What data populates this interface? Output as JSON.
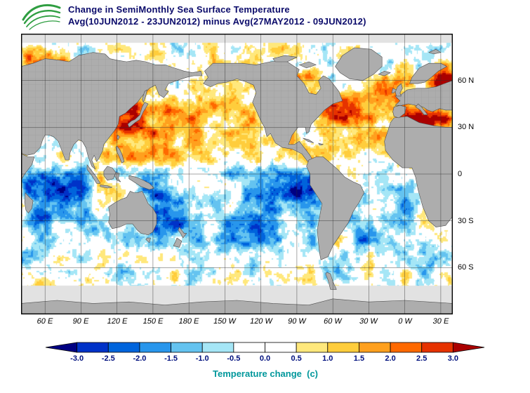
{
  "header": {
    "title_line1": "Change in SemiMonthly Sea Surface Temperature",
    "title_line2": "Avg(10JUN2012 - 23JUN2012) minus Avg(27MAY2012 - 09JUN2012)"
  },
  "map": {
    "lat_labels": [
      "60 N",
      "30 N",
      "0",
      "30 S",
      "60 S"
    ],
    "lon_labels": [
      "60 E",
      "90 E",
      "120 E",
      "150 E",
      "180 E",
      "150 W",
      "120 W",
      "90 W",
      "60 W",
      "30 W",
      "0 W",
      "30 E"
    ],
    "land_color": "#adadad",
    "ice_color": "#e2e2e2",
    "grid_color": "#303030",
    "border_color": "#000000"
  },
  "colorbar": {
    "label": "Temperature change  (c)",
    "tick_labels": [
      "-3.0",
      "-2.5",
      "-2.0",
      "-1.5",
      "-1.0",
      "-0.5",
      "0.0",
      "0.5",
      "1.0",
      "1.5",
      "2.0",
      "2.5",
      "3.0"
    ],
    "colors": [
      "#000082",
      "#0032c8",
      "#0064dc",
      "#2896ec",
      "#64c3f0",
      "#a5e6f6",
      "#ffffff",
      "#ffffff",
      "#ffe87c",
      "#ffcd3c",
      "#ffa01e",
      "#ff6900",
      "#e63200",
      "#aa0000"
    ]
  },
  "chart_data": {
    "type": "heatmap",
    "title": "Change in SemiMonthly Sea Surface Temperature",
    "subtitle": "Avg(10JUN2012 - 23JUN2012) minus Avg(27MAY2012 - 09JUN2012)",
    "units": "C",
    "value_range": [
      -3.5,
      3.5
    ],
    "contour_interval": 0.5,
    "projection": "cylindrical-equidistant",
    "lon_range_deg_e": [
      40,
      400
    ],
    "lat_range_deg": [
      -90,
      90
    ],
    "lat_gridlines_deg": [
      60,
      30,
      0,
      -30,
      -60
    ],
    "lon_gridlines_deg_e": [
      60,
      90,
      120,
      150,
      180,
      210,
      240,
      270,
      300,
      330,
      360,
      390
    ],
    "anomaly_regions": [
      {
        "name": "nh-broad-slight-warming",
        "lon": [
          30,
          410
        ],
        "lat": [
          4,
          72
        ],
        "delta_c": 0.25
      },
      {
        "name": "barents-kara-strong-warming",
        "lon": [
          44,
          82
        ],
        "lat": [
          66,
          80
        ],
        "delta_c": 2.2
      },
      {
        "name": "nw-pacific-strong-warming",
        "lon": [
          118,
          168
        ],
        "lat": [
          24,
          46
        ],
        "delta_c": 1.9
      },
      {
        "name": "central-north-pacific-warming",
        "lon": [
          168,
          238
        ],
        "lat": [
          26,
          48
        ],
        "delta_c": 0.9
      },
      {
        "name": "subtropical-north-pacific-warming",
        "lon": [
          115,
          250
        ],
        "lat": [
          6,
          26
        ],
        "delta_c": 0.55
      },
      {
        "name": "caribbean-east-pacific-warming",
        "lon": [
          250,
          300
        ],
        "lat": [
          6,
          30
        ],
        "delta_c": 0.5
      },
      {
        "name": "gulf-stream-nw-atlantic-warming",
        "lon": [
          288,
          330
        ],
        "lat": [
          33,
          53
        ],
        "delta_c": 1.6
      },
      {
        "name": "northeast-atlantic-warming",
        "lon": [
          330,
          400
        ],
        "lat": [
          30,
          63
        ],
        "delta_c": 1.1
      },
      {
        "name": "mediterranean-strong-warming",
        "lon": [
          355,
          398
        ],
        "lat": [
          30,
          40
        ],
        "delta_c": 2.1
      },
      {
        "name": "tropical-north-atlantic-warming",
        "lon": [
          308,
          385
        ],
        "lat": [
          8,
          28
        ],
        "delta_c": 0.8
      },
      {
        "name": "hudson-bay-labrador-warming",
        "lon": [
          252,
          292
        ],
        "lat": [
          52,
          67
        ],
        "delta_c": 1.5
      },
      {
        "name": "norwegian-sea-warming",
        "lon": [
          382,
          402
        ],
        "lat": [
          55,
          71
        ],
        "delta_c": 1.8
      },
      {
        "name": "argentine-shelf-warming",
        "lon": [
          295,
          318
        ],
        "lat": [
          -48,
          -33
        ],
        "delta_c": 1.9
      },
      {
        "name": "timor-banda-warming",
        "lon": [
          100,
          127
        ],
        "lat": [
          -16,
          -4
        ],
        "delta_c": 0.9
      },
      {
        "name": "central-indian-ocean-strong-cooling",
        "lon": [
          42,
          100
        ],
        "lat": [
          -30,
          3
        ],
        "delta_c": -1.9
      },
      {
        "name": "arabian-sea-cooling",
        "lon": [
          52,
          75
        ],
        "lat": [
          5,
          20
        ],
        "delta_c": -1.0
      },
      {
        "name": "bay-of-bengal-cooling",
        "lon": [
          78,
          100
        ],
        "lat": [
          4,
          20
        ],
        "delta_c": -0.9
      },
      {
        "name": "equatorial-pacific-cooling",
        "lon": [
          138,
          285
        ],
        "lat": [
          -14,
          6
        ],
        "delta_c": -0.9
      },
      {
        "name": "south-pacific-cooling",
        "lon": [
          148,
          292
        ],
        "lat": [
          -48,
          -12
        ],
        "delta_c": -1.0
      },
      {
        "name": "coral-tasman-cooling",
        "lon": [
          143,
          178
        ],
        "lat": [
          -38,
          -12
        ],
        "delta_c": -1.0
      },
      {
        "name": "peru-chile-coastal-cooling",
        "lon": [
          262,
          286
        ],
        "lat": [
          -22,
          2
        ],
        "delta_c": -0.9
      },
      {
        "name": "south-atlantic-cooling",
        "lon": [
          305,
          368
        ],
        "lat": [
          -48,
          -6
        ],
        "delta_c": -1.0
      },
      {
        "name": "south-indian-cooling",
        "lon": [
          40,
          140
        ],
        "lat": [
          -46,
          -30
        ],
        "delta_c": -0.6
      },
      {
        "name": "circumpolar-southern-ocean-mixed",
        "lon": [
          30,
          410
        ],
        "lat": [
          -64,
          -47
        ],
        "delta_c": -0.4
      },
      {
        "name": "somali-coast-cooling",
        "lon": [
          38,
          52
        ],
        "lat": [
          -5,
          13
        ],
        "delta_c": -0.6
      }
    ]
  }
}
